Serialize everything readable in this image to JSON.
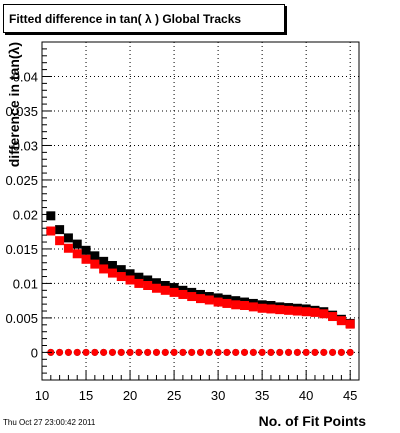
{
  "window_title": "Fitted difference in tan( λ )  Global Tracks",
  "timestamp": "Thu Oct 27 23:00:42 2011",
  "chart_data": {
    "type": "scatter",
    "title": "Fitted difference in tan( λ )  Global Tracks",
    "xlabel": "No. of Fit Points",
    "ylabel": "difference in tan(λ)",
    "xlim": [
      10,
      46
    ],
    "ylim": [
      -0.004,
      0.045
    ],
    "x_ticks": [
      10,
      15,
      20,
      25,
      30,
      35,
      40,
      45
    ],
    "y_ticks": [
      0,
      0.005,
      0.01,
      0.015,
      0.02,
      0.025,
      0.03,
      0.035,
      0.04
    ],
    "y_tick_labels": [
      "0",
      "0.005",
      "0.01",
      "0.015",
      "0.02",
      "0.025",
      "0.03",
      "0.035",
      "0.04"
    ],
    "grid": true,
    "x": [
      11,
      12,
      13,
      14,
      15,
      16,
      17,
      18,
      19,
      20,
      21,
      22,
      23,
      24,
      25,
      26,
      27,
      28,
      29,
      30,
      31,
      32,
      33,
      34,
      35,
      36,
      37,
      38,
      39,
      40,
      41,
      42,
      43,
      44,
      45
    ],
    "series": [
      {
        "color": "#000000",
        "marker": "square",
        "values": [
          0.0198,
          0.0178,
          0.0166,
          0.0157,
          0.0148,
          0.014,
          0.0132,
          0.0126,
          0.012,
          0.0114,
          0.0109,
          0.0105,
          0.0101,
          0.0097,
          0.0094,
          0.009,
          0.0087,
          0.0084,
          0.0081,
          0.0079,
          0.0077,
          0.0075,
          0.0073,
          0.0071,
          0.0069,
          0.0068,
          0.0066,
          0.0065,
          0.0064,
          0.0063,
          0.0061,
          0.0059,
          0.0054,
          0.0048,
          0.0042
        ]
      },
      {
        "color": "#ff0000",
        "marker": "square",
        "values": [
          0.0176,
          0.0162,
          0.0151,
          0.0143,
          0.0135,
          0.0128,
          0.0121,
          0.0115,
          0.011,
          0.0105,
          0.01,
          0.0097,
          0.0093,
          0.009,
          0.0087,
          0.0084,
          0.0081,
          0.0078,
          0.0076,
          0.0073,
          0.0071,
          0.0069,
          0.0068,
          0.0066,
          0.0064,
          0.0063,
          0.0062,
          0.0061,
          0.006,
          0.0059,
          0.0058,
          0.0056,
          0.0052,
          0.0046,
          0.0041
        ]
      },
      {
        "color": "#000000",
        "marker": "circle",
        "values": [
          0,
          0,
          0,
          0,
          0,
          0,
          0,
          0,
          0,
          0,
          0,
          0,
          0,
          0,
          0,
          0,
          0,
          0,
          0,
          0,
          0,
          0,
          0,
          0,
          0,
          0,
          0,
          0,
          0,
          0,
          0,
          0,
          0,
          0,
          0
        ]
      },
      {
        "color": "#ff0000",
        "marker": "circle",
        "values": [
          0,
          0,
          0,
          0,
          0,
          0,
          0,
          0,
          0,
          0,
          0,
          0,
          0,
          0,
          0,
          0,
          0,
          0,
          0,
          0,
          0,
          0,
          0,
          0,
          0,
          0,
          0,
          0,
          0,
          0,
          0,
          0,
          0,
          0,
          0
        ]
      }
    ]
  }
}
